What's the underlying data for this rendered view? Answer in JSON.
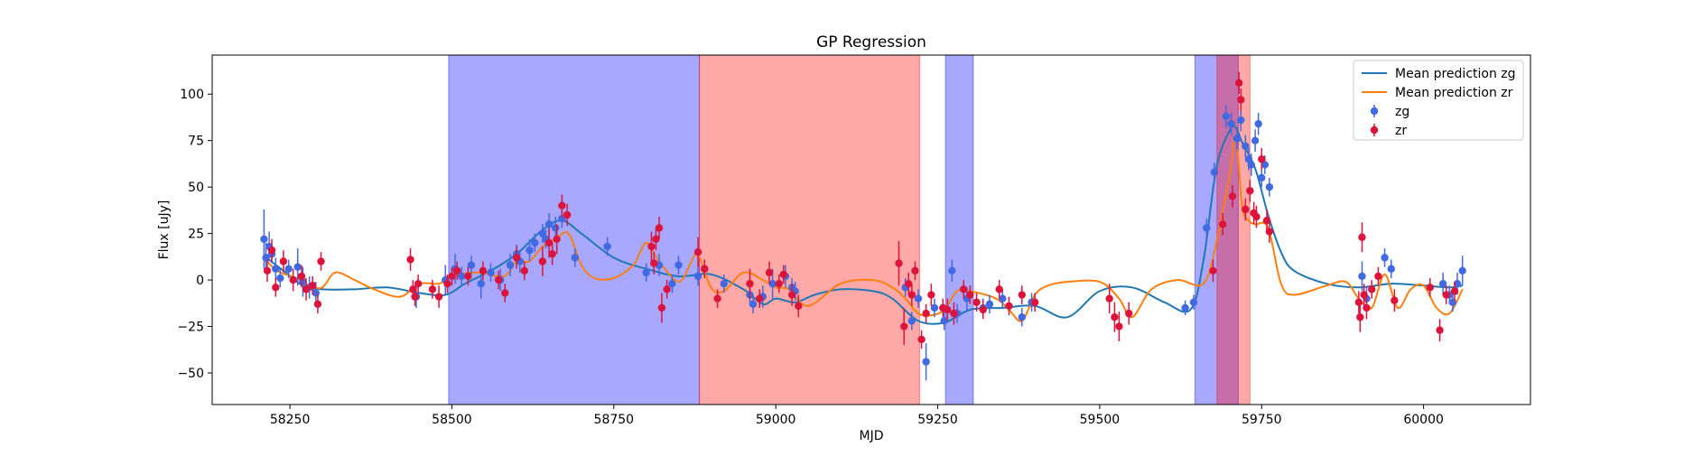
{
  "chart_data": {
    "type": "scatter",
    "title": "GP Regression",
    "xlabel": "MJD",
    "ylabel": "Flux [uJy]",
    "xlim": [
      58130,
      60165
    ],
    "ylim": [
      -67,
      121
    ],
    "xticks": [
      58250,
      58500,
      58750,
      59000,
      59250,
      59500,
      59750,
      60000
    ],
    "yticks": [
      -50,
      -25,
      0,
      25,
      50,
      75,
      100
    ],
    "grid": false,
    "legend_position": "top-right",
    "colors": {
      "zg_points": "#4169e1",
      "zr_points": "#dc143c",
      "zg_line": "#1f77b4",
      "zr_line": "#ff7f0e",
      "zg_span": "#0000ff",
      "zr_span": "#ff0000"
    },
    "shaded_regions": [
      {
        "band": "zg",
        "x0": 58495,
        "x1": 58882
      },
      {
        "band": "zr",
        "x0": 58882,
        "x1": 59222
      },
      {
        "band": "zg",
        "x0": 59262,
        "x1": 59305
      },
      {
        "band": "zg",
        "x0": 59647,
        "x1": 59714
      },
      {
        "band": "zr",
        "x0": 59681,
        "x1": 59732
      }
    ],
    "series": [
      {
        "name": "Mean prediction zg",
        "kind": "line",
        "x": [
          58210,
          58240,
          58270,
          58300,
          58350,
          58400,
          58450,
          58490,
          58520,
          58560,
          58600,
          58640,
          58670,
          58700,
          58750,
          58800,
          58850,
          58900,
          58950,
          58980,
          59000,
          59030,
          59060,
          59100,
          59150,
          59180,
          59220,
          59260,
          59300,
          59350,
          59400,
          59450,
          59500,
          59550,
          59600,
          59640,
          59660,
          59680,
          59700,
          59710,
          59720,
          59740,
          59760,
          59780,
          59800,
          59850,
          59900,
          59950,
          60000,
          60040,
          60060
        ],
        "y": [
          13,
          5,
          -3,
          -5,
          -5,
          -4,
          -7,
          -8,
          -2,
          5,
          14,
          27,
          32,
          25,
          12,
          6,
          2,
          3,
          -5,
          -13,
          -10,
          -12,
          -8,
          -5,
          -6,
          -10,
          -22,
          -23,
          -16,
          -15,
          -14,
          -20,
          -6,
          -4,
          -12,
          -16,
          10,
          60,
          80,
          82,
          74,
          60,
          35,
          15,
          5,
          -2,
          -4,
          -2,
          -3,
          -4,
          -3
        ]
      },
      {
        "name": "Mean prediction zr",
        "kind": "line",
        "x": [
          58210,
          58230,
          58260,
          58280,
          58300,
          58320,
          58350,
          58380,
          58420,
          58450,
          58480,
          58500,
          58540,
          58580,
          58600,
          58620,
          58640,
          58660,
          58680,
          58700,
          58720,
          58750,
          58780,
          58800,
          58820,
          58850,
          58870,
          58880,
          58900,
          58920,
          58950,
          58980,
          59000,
          59020,
          59050,
          59100,
          59150,
          59180,
          59200,
          59220,
          59240,
          59260,
          59280,
          59300,
          59340,
          59360,
          59380,
          59400,
          59420,
          59450,
          59500,
          59530,
          59550,
          59580,
          59620,
          59660,
          59680,
          59700,
          59710,
          59720,
          59730,
          59740,
          59760,
          59780,
          59800,
          59850,
          59880,
          59900,
          59920,
          59940,
          59960,
          59980,
          60000,
          60020,
          60040,
          60060
        ],
        "y": [
          12,
          5,
          1,
          -3,
          -4,
          4,
          0,
          -5,
          -9,
          -2,
          -2,
          2,
          4,
          2,
          10,
          10,
          18,
          22,
          25,
          8,
          1,
          1,
          8,
          20,
          10,
          -1,
          10,
          14,
          -4,
          -6,
          4,
          0,
          -4,
          -5,
          -14,
          -2,
          0,
          -4,
          -10,
          -18,
          -19,
          -16,
          -6,
          -6,
          -10,
          -16,
          -22,
          -8,
          -3,
          -1,
          -1,
          -10,
          -20,
          -5,
          0,
          -2,
          20,
          55,
          77,
          40,
          32,
          30,
          28,
          -2,
          -8,
          -3,
          -1,
          -10,
          -15,
          3,
          -15,
          -5,
          -3,
          -15,
          -18,
          -5
        ]
      },
      {
        "name": "zg",
        "kind": "points",
        "points": [
          [
            58210,
            22,
            16
          ],
          [
            58213,
            12,
            8
          ],
          [
            58218,
            18,
            8
          ],
          [
            58222,
            14,
            5
          ],
          [
            58228,
            6,
            6
          ],
          [
            58235,
            1,
            5
          ],
          [
            58248,
            6,
            5
          ],
          [
            58262,
            7,
            10
          ],
          [
            58270,
            -1,
            8
          ],
          [
            58280,
            -4,
            6
          ],
          [
            58290,
            -7,
            6
          ],
          [
            58445,
            -9,
            6
          ],
          [
            58490,
            0,
            8
          ],
          [
            58505,
            6,
            8
          ],
          [
            58515,
            2,
            5
          ],
          [
            58530,
            8,
            5
          ],
          [
            58545,
            -2,
            8
          ],
          [
            58560,
            4,
            5
          ],
          [
            58575,
            0,
            6
          ],
          [
            58590,
            8,
            6
          ],
          [
            58600,
            14,
            5
          ],
          [
            58605,
            10,
            6
          ],
          [
            58620,
            16,
            6
          ],
          [
            58628,
            20,
            5
          ],
          [
            58640,
            25,
            5
          ],
          [
            58645,
            22,
            5
          ],
          [
            58650,
            30,
            6
          ],
          [
            58660,
            28,
            6
          ],
          [
            58670,
            33,
            5
          ],
          [
            58690,
            12,
            5
          ],
          [
            58740,
            18,
            5
          ],
          [
            58800,
            4,
            5
          ],
          [
            58820,
            8,
            6
          ],
          [
            58840,
            -2,
            5
          ],
          [
            58850,
            8,
            5
          ],
          [
            58880,
            2,
            5
          ],
          [
            58890,
            6,
            5
          ],
          [
            58920,
            -2,
            5
          ],
          [
            58960,
            -8,
            6
          ],
          [
            58965,
            -13,
            5
          ],
          [
            58980,
            -9,
            6
          ],
          [
            58995,
            -2,
            8
          ],
          [
            59015,
            2,
            6
          ],
          [
            59025,
            -4,
            5
          ],
          [
            59030,
            -6,
            5
          ],
          [
            59200,
            -4,
            5
          ],
          [
            59210,
            -22,
            5
          ],
          [
            59220,
            -10,
            5
          ],
          [
            59232,
            -44,
            10
          ],
          [
            59245,
            -15,
            5
          ],
          [
            59260,
            -22,
            5
          ],
          [
            59272,
            5,
            6
          ],
          [
            59280,
            -18,
            5
          ],
          [
            59295,
            -10,
            6
          ],
          [
            59320,
            -15,
            5
          ],
          [
            59330,
            -13,
            5
          ],
          [
            59350,
            -10,
            5
          ],
          [
            59380,
            -20,
            5
          ],
          [
            59395,
            -12,
            5
          ],
          [
            59632,
            -15,
            4
          ],
          [
            59645,
            -12,
            4
          ],
          [
            59665,
            28,
            5
          ],
          [
            59677,
            58,
            5
          ],
          [
            59695,
            88,
            6
          ],
          [
            59703,
            84,
            6
          ],
          [
            59712,
            76,
            6
          ],
          [
            59718,
            86,
            6
          ],
          [
            59725,
            72,
            6
          ],
          [
            59730,
            65,
            6
          ],
          [
            59734,
            62,
            6
          ],
          [
            59740,
            75,
            6
          ],
          [
            59745,
            84,
            6
          ],
          [
            59750,
            55,
            5
          ],
          [
            59755,
            62,
            5
          ],
          [
            59762,
            50,
            5
          ],
          [
            59905,
            2,
            8
          ],
          [
            59912,
            -10,
            6
          ],
          [
            59940,
            12,
            5
          ],
          [
            59950,
            6,
            5
          ],
          [
            60030,
            -2,
            6
          ],
          [
            60040,
            -8,
            5
          ],
          [
            60045,
            -12,
            5
          ],
          [
            60052,
            -2,
            6
          ],
          [
            60060,
            5,
            8
          ]
        ]
      },
      {
        "name": "zr",
        "kind": "points",
        "points": [
          [
            58215,
            5,
            6
          ],
          [
            58222,
            16,
            6
          ],
          [
            58228,
            -4,
            5
          ],
          [
            58240,
            10,
            6
          ],
          [
            58255,
            0,
            6
          ],
          [
            58268,
            2,
            6
          ],
          [
            58275,
            -5,
            6
          ],
          [
            58285,
            -3,
            5
          ],
          [
            58293,
            -13,
            5
          ],
          [
            58298,
            10,
            5
          ],
          [
            58436,
            11,
            6
          ],
          [
            58440,
            -5,
            5
          ],
          [
            58443,
            -9,
            5
          ],
          [
            58448,
            -2,
            5
          ],
          [
            58470,
            -5,
            5
          ],
          [
            58480,
            -9,
            6
          ],
          [
            58493,
            -2,
            5
          ],
          [
            58500,
            2,
            5
          ],
          [
            58508,
            5,
            5
          ],
          [
            58525,
            2,
            5
          ],
          [
            58548,
            5,
            5
          ],
          [
            58572,
            0,
            5
          ],
          [
            58582,
            -7,
            5
          ],
          [
            58600,
            12,
            6
          ],
          [
            58612,
            5,
            5
          ],
          [
            58640,
            10,
            8
          ],
          [
            58650,
            20,
            8
          ],
          [
            58655,
            14,
            6
          ],
          [
            58662,
            22,
            8
          ],
          [
            58670,
            40,
            6
          ],
          [
            58678,
            35,
            6
          ],
          [
            58808,
            18,
            8
          ],
          [
            58812,
            9,
            6
          ],
          [
            58815,
            22,
            6
          ],
          [
            58820,
            28,
            6
          ],
          [
            58824,
            -15,
            8
          ],
          [
            58832,
            -5,
            5
          ],
          [
            58880,
            15,
            8
          ],
          [
            58890,
            6,
            5
          ],
          [
            58910,
            -10,
            5
          ],
          [
            58960,
            -2,
            8
          ],
          [
            58975,
            -10,
            5
          ],
          [
            58990,
            4,
            6
          ],
          [
            59005,
            -2,
            5
          ],
          [
            59012,
            3,
            5
          ],
          [
            59025,
            -8,
            6
          ],
          [
            59035,
            -14,
            6
          ],
          [
            59190,
            9,
            12
          ],
          [
            59198,
            -25,
            10
          ],
          [
            59205,
            -2,
            6
          ],
          [
            59210,
            -8,
            6
          ],
          [
            59215,
            5,
            5
          ],
          [
            59225,
            -32,
            5
          ],
          [
            59232,
            -18,
            5
          ],
          [
            59240,
            -8,
            6
          ],
          [
            59258,
            -15,
            5
          ],
          [
            59265,
            -16,
            6
          ],
          [
            59275,
            -18,
            6
          ],
          [
            59290,
            -5,
            5
          ],
          [
            59300,
            -8,
            5
          ],
          [
            59310,
            -12,
            5
          ],
          [
            59320,
            -16,
            5
          ],
          [
            59345,
            -5,
            5
          ],
          [
            59360,
            -14,
            5
          ],
          [
            59380,
            -8,
            5
          ],
          [
            59400,
            -12,
            5
          ],
          [
            59515,
            -10,
            8
          ],
          [
            59523,
            -20,
            8
          ],
          [
            59530,
            -25,
            8
          ],
          [
            59545,
            -18,
            6
          ],
          [
            59675,
            5,
            6
          ],
          [
            59690,
            30,
            6
          ],
          [
            59705,
            45,
            6
          ],
          [
            59715,
            106,
            6
          ],
          [
            59718,
            97,
            6
          ],
          [
            59725,
            38,
            6
          ],
          [
            59732,
            48,
            6
          ],
          [
            59738,
            36,
            6
          ],
          [
            59742,
            34,
            6
          ],
          [
            59750,
            65,
            6
          ],
          [
            59758,
            32,
            6
          ],
          [
            59762,
            26,
            6
          ],
          [
            59900,
            -12,
            6
          ],
          [
            59902,
            -20,
            8
          ],
          [
            59905,
            23,
            8
          ],
          [
            59908,
            -8,
            6
          ],
          [
            59912,
            -15,
            6
          ],
          [
            59920,
            -5,
            5
          ],
          [
            59930,
            2,
            5
          ],
          [
            59955,
            -11,
            6
          ],
          [
            60010,
            -4,
            5
          ],
          [
            60025,
            -27,
            6
          ],
          [
            60035,
            -8,
            5
          ],
          [
            60048,
            -6,
            5
          ]
        ]
      }
    ]
  }
}
